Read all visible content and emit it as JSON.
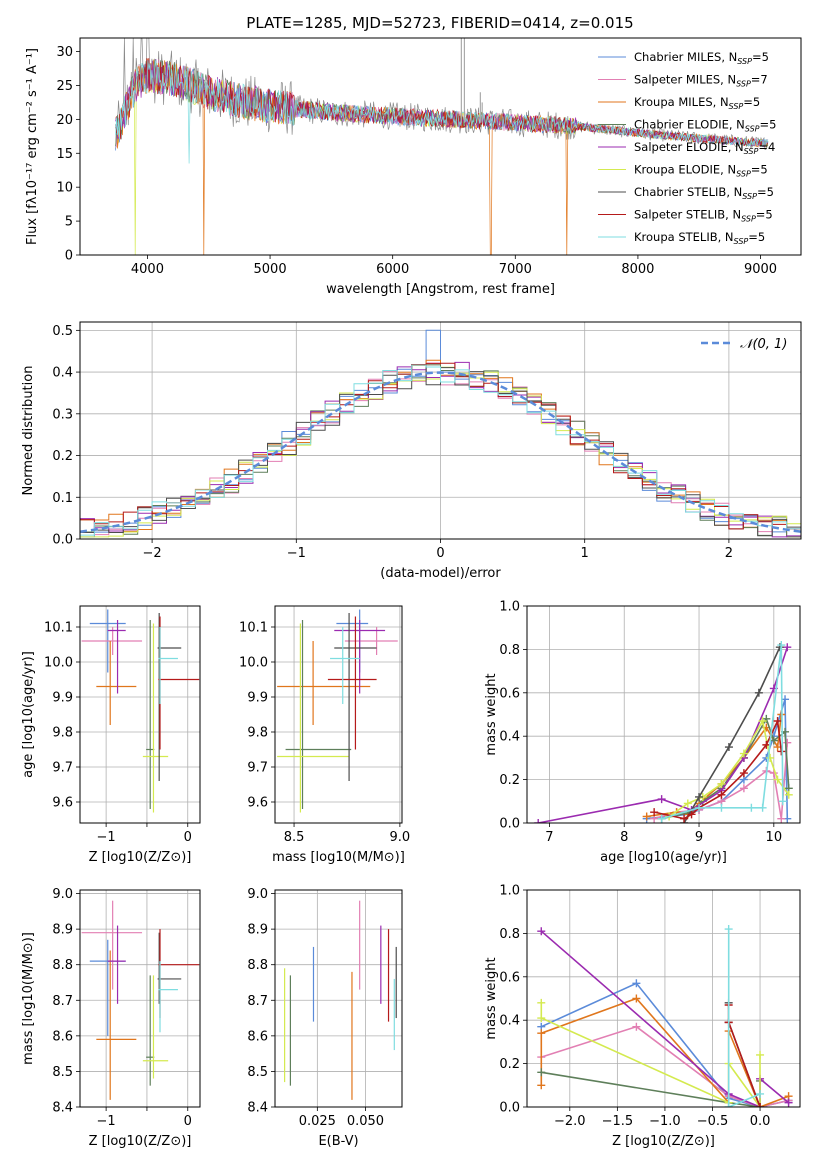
{
  "figure_title": "PLATE=1285, MJD=52723, FIBERID=0414, z=0.015",
  "colors": {
    "Chabrier MILES": "#5b8bd9",
    "Salpeter MILES": "#e27fb3",
    "Kroupa MILES": "#e0761c",
    "Chabrier ELODIE": "#5e7f5a",
    "Salpeter ELODIE": "#9b2bb0",
    "Kroupa ELODIE": "#d4ea4f",
    "Chabrier STELIB": "#4d4d4d",
    "Salpeter STELIB": "#b51a1a",
    "Kroupa STELIB": "#7fdde0"
  },
  "chart_data": [
    {
      "id": "spectrum",
      "type": "line",
      "xlabel": "wavelength [Angstrom, rest frame]",
      "ylabel": "Flux [fλ10⁻¹⁷ erg cm⁻² s⁻¹ A⁻¹]",
      "xlim": [
        3450,
        9330
      ],
      "ylim": [
        0,
        32
      ],
      "xticks": [
        4000,
        5000,
        6000,
        7000,
        8000,
        9000
      ],
      "yticks": [
        0,
        5,
        10,
        15,
        20,
        25,
        30
      ],
      "legend_position": "top-right",
      "series": [
        {
          "name": "Chabrier MILES, N_SSP=5"
        },
        {
          "name": "Salpeter MILES, N_SSP=7"
        },
        {
          "name": "Kroupa MILES, N_SSP=5"
        },
        {
          "name": "Chabrier ELODIE, N_SSP=5"
        },
        {
          "name": "Salpeter ELODIE, N_SSP=4"
        },
        {
          "name": "Kroupa ELODIE, N_SSP=5"
        },
        {
          "name": "Chabrier STELIB, N_SSP=5"
        },
        {
          "name": "Salpeter STELIB, N_SSP=5"
        },
        {
          "name": "Kroupa STELIB, N_SSP=5"
        }
      ],
      "data_profile": {
        "x": [
          3750,
          3900,
          4000,
          4200,
          4500,
          4800,
          5000,
          5500,
          6000,
          6500,
          7000,
          7500,
          8000,
          8500,
          9000
        ],
        "y": [
          18,
          25,
          26.5,
          26,
          24,
          22.5,
          22,
          21,
          20.5,
          20,
          19.5,
          19,
          18,
          17.2,
          16.5
        ]
      }
    },
    {
      "id": "residuals",
      "type": "histogram",
      "xlabel": "(data-model)/error",
      "ylabel": "Normed distribution",
      "xlim": [
        -2.5,
        2.5
      ],
      "ylim": [
        0,
        0.52
      ],
      "xticks": [
        -2,
        -1,
        0,
        1,
        2
      ],
      "yticks": [
        0.0,
        0.1,
        0.2,
        0.3,
        0.4,
        0.5
      ],
      "grid": true,
      "legend": "𝒩(0, 1)",
      "legend_position": "top-right",
      "reference_curve": "gaussian mean 0 sigma 1"
    },
    {
      "id": "age-vs-Z",
      "type": "errorbar",
      "xlabel": "Z [log10(Z/Z⊙)]",
      "ylabel": "age  [log10(age/yr)]",
      "xlim": [
        -1.32,
        0.15
      ],
      "ylim": [
        9.54,
        10.16
      ],
      "xticks": [
        -1,
        -0.5,
        0
      ],
      "xticklabels": [
        "−1",
        "",
        "0"
      ],
      "yticks": [
        9.6,
        9.7,
        9.8,
        9.9,
        10.0,
        10.1
      ],
      "grid": true,
      "points": [
        {
          "series": "Chabrier MILES",
          "x": -0.98,
          "y": 10.11,
          "xerr": [
            0.22,
            0.22
          ],
          "yerr": [
            0.14,
            0.04
          ]
        },
        {
          "series": "Salpeter MILES",
          "x": -0.92,
          "y": 10.06,
          "xerr": [
            0.38,
            0.36
          ],
          "yerr": [
            0.04,
            0.04
          ]
        },
        {
          "series": "Kroupa MILES",
          "x": -0.95,
          "y": 9.93,
          "xerr": [
            0.17,
            0.32
          ],
          "yerr": [
            0.11,
            0.13
          ]
        },
        {
          "series": "Chabrier ELODIE",
          "x": -0.46,
          "y": 9.75,
          "xerr": [
            0.05,
            0.05
          ],
          "yerr": [
            0.17,
            0.37
          ]
        },
        {
          "series": "Salpeter ELODIE",
          "x": -0.86,
          "y": 10.09,
          "xerr": [
            0.12,
            0.1
          ],
          "yerr": [
            0.18,
            0.03
          ]
        },
        {
          "series": "Kroupa ELODIE",
          "x": -0.42,
          "y": 9.73,
          "xerr": [
            0.13,
            0.18
          ],
          "yerr": [
            0.16,
            0.38
          ]
        },
        {
          "series": "Chabrier STELIB",
          "x": -0.35,
          "y": 10.04,
          "xerr": [
            0.02,
            0.27
          ],
          "yerr": [
            0.38,
            0.1
          ]
        },
        {
          "series": "Salpeter STELIB",
          "x": -0.34,
          "y": 9.95,
          "xerr": [
            0.02,
            0.48
          ],
          "yerr": [
            0.2,
            0.18
          ]
        },
        {
          "series": "Kroupa STELIB",
          "x": -0.34,
          "y": 10.01,
          "xerr": [
            0.02,
            0.22
          ],
          "yerr": [
            0.13,
            0.09
          ]
        }
      ]
    },
    {
      "id": "age-vs-mass",
      "type": "errorbar",
      "xlabel": "mass [log10(M/M⊙)]",
      "ylabel": "",
      "xlim": [
        8.41,
        9.01
      ],
      "ylim": [
        9.54,
        10.16
      ],
      "xticks": [
        8.5,
        9.0
      ],
      "xticklabels": [
        "8.5",
        "9.0"
      ],
      "yticks": [
        9.6,
        9.7,
        9.8,
        9.9,
        10.0,
        10.1
      ],
      "grid": true,
      "points": [
        {
          "series": "Chabrier MILES",
          "x": 8.81,
          "y": 10.11,
          "xerr": [
            0.11,
            0.04
          ],
          "yerr": [
            0.14,
            0.04
          ]
        },
        {
          "series": "Salpeter MILES",
          "x": 8.89,
          "y": 10.06,
          "xerr": [
            0.15,
            0.1
          ],
          "yerr": [
            0.04,
            0.04
          ]
        },
        {
          "series": "Kroupa MILES",
          "x": 8.59,
          "y": 9.93,
          "xerr": [
            0.17,
            0.27
          ],
          "yerr": [
            0.11,
            0.13
          ]
        },
        {
          "series": "Chabrier ELODIE",
          "x": 8.54,
          "y": 9.75,
          "xerr": [
            0.08,
            0.23
          ],
          "yerr": [
            0.17,
            0.37
          ]
        },
        {
          "series": "Salpeter ELODIE",
          "x": 8.81,
          "y": 10.09,
          "xerr": [
            0.12,
            0.12
          ],
          "yerr": [
            0.18,
            0.03
          ]
        },
        {
          "series": "Kroupa ELODIE",
          "x": 8.53,
          "y": 9.73,
          "xerr": [
            0.11,
            0.23
          ],
          "yerr": [
            0.16,
            0.38
          ]
        },
        {
          "series": "Chabrier STELIB",
          "x": 8.76,
          "y": 10.04,
          "xerr": [
            0.07,
            0.13
          ],
          "yerr": [
            0.38,
            0.1
          ]
        },
        {
          "series": "Salpeter STELIB",
          "x": 8.79,
          "y": 9.95,
          "xerr": [
            0.13,
            0.1
          ],
          "yerr": [
            0.2,
            0.18
          ]
        },
        {
          "series": "Kroupa STELIB",
          "x": 8.73,
          "y": 10.01,
          "xerr": [
            0.06,
            0.08
          ],
          "yerr": [
            0.13,
            0.09
          ]
        }
      ]
    },
    {
      "id": "weight-vs-age",
      "type": "line",
      "xlabel": "age  [log10(age/yr)]",
      "ylabel": "mass weight",
      "xlim": [
        6.7,
        10.35
      ],
      "ylim": [
        0,
        1.0
      ],
      "xticks": [
        7,
        8,
        9,
        10
      ],
      "yticks": [
        0.0,
        0.2,
        0.4,
        0.6,
        0.8,
        1.0
      ],
      "grid": true,
      "series": [
        {
          "series": "Chabrier MILES",
          "x": [
            8.3,
            8.85,
            9.0,
            9.3,
            9.6,
            9.9,
            10.0,
            10.15,
            10.18
          ],
          "y": [
            0.02,
            0.04,
            0.06,
            0.1,
            0.2,
            0.3,
            0.4,
            0.57,
            0.02
          ]
        },
        {
          "series": "Salpeter MILES",
          "x": [
            8.4,
            8.7,
            9.0,
            9.3,
            9.6,
            9.9,
            10.0,
            10.1,
            10.18
          ],
          "y": [
            0.02,
            0.05,
            0.06,
            0.1,
            0.16,
            0.24,
            0.23,
            0.02,
            0.37
          ]
        },
        {
          "series": "Kroupa MILES",
          "x": [
            8.3,
            8.7,
            8.85,
            9.0,
            9.3,
            9.6,
            9.9,
            10.05,
            10.1
          ],
          "y": [
            0.03,
            0.05,
            0.04,
            0.09,
            0.18,
            0.3,
            0.44,
            0.35,
            0.5
          ]
        },
        {
          "series": "Chabrier ELODIE",
          "x": [
            8.5,
            8.9,
            9.05,
            9.3,
            9.6,
            9.9,
            10.0,
            10.15,
            10.2
          ],
          "y": [
            0.02,
            0.05,
            0.1,
            0.16,
            0.3,
            0.48,
            0.38,
            0.42,
            0.16
          ]
        },
        {
          "series": "Salpeter ELODIE",
          "x": [
            6.85,
            8.5,
            8.9,
            9.3,
            9.6,
            10.0,
            10.18
          ],
          "y": [
            0.0,
            0.11,
            0.06,
            0.15,
            0.3,
            0.62,
            0.81
          ]
        },
        {
          "series": "Kroupa ELODIE",
          "x": [
            8.6,
            8.85,
            9.05,
            9.3,
            9.6,
            9.85,
            9.95,
            10.05,
            10.2
          ],
          "y": [
            0.03,
            0.09,
            0.12,
            0.18,
            0.32,
            0.47,
            0.3,
            0.2,
            0.13
          ]
        },
        {
          "series": "Chabrier STELIB",
          "x": [
            8.8,
            9.0,
            9.4,
            9.8,
            10.08
          ],
          "y": [
            0.0,
            0.12,
            0.35,
            0.6,
            0.81
          ]
        },
        {
          "series": "Salpeter STELIB",
          "x": [
            8.4,
            8.8,
            8.9,
            9.0,
            9.3,
            9.6,
            9.9,
            10.05,
            10.1
          ],
          "y": [
            0.05,
            0.02,
            0.04,
            0.07,
            0.13,
            0.23,
            0.36,
            0.47,
            0.33
          ]
        },
        {
          "series": "Kroupa STELIB",
          "x": [
            8.5,
            9.0,
            9.3,
            9.7,
            9.85,
            10.1,
            10.12
          ],
          "y": [
            0.02,
            0.07,
            0.07,
            0.07,
            0.07,
            0.82,
            0.1
          ]
        }
      ]
    },
    {
      "id": "mass-vs-Z",
      "type": "errorbar",
      "xlabel": "Z [log10(Z/Z⊙)]",
      "ylabel": "mass [log10(M/M⊙)]",
      "xlim": [
        -1.32,
        0.15
      ],
      "ylim": [
        8.4,
        9.01
      ],
      "xticks": [
        -1,
        -0.5,
        0
      ],
      "xticklabels": [
        "−1",
        "",
        "0"
      ],
      "yticks": [
        8.4,
        8.5,
        8.6,
        8.7,
        8.8,
        8.9,
        9.0
      ],
      "grid": true,
      "points": [
        {
          "series": "Chabrier MILES",
          "x": -0.98,
          "y": 8.81,
          "xerr": [
            0.22,
            0.22
          ],
          "yerr": [
            0.21,
            0.06
          ]
        },
        {
          "series": "Salpeter MILES",
          "x": -0.92,
          "y": 8.89,
          "xerr": [
            0.38,
            0.36
          ],
          "yerr": [
            0.16,
            0.09
          ]
        },
        {
          "series": "Kroupa MILES",
          "x": -0.95,
          "y": 8.59,
          "xerr": [
            0.17,
            0.32
          ],
          "yerr": [
            0.17,
            0.25
          ]
        },
        {
          "series": "Chabrier ELODIE",
          "x": -0.46,
          "y": 8.54,
          "xerr": [
            0.05,
            0.05
          ],
          "yerr": [
            0.08,
            0.23
          ]
        },
        {
          "series": "Salpeter ELODIE",
          "x": -0.86,
          "y": 8.81,
          "xerr": [
            0.12,
            0.1
          ],
          "yerr": [
            0.12,
            0.1
          ]
        },
        {
          "series": "Kroupa ELODIE",
          "x": -0.42,
          "y": 8.53,
          "xerr": [
            0.13,
            0.18
          ],
          "yerr": [
            0.05,
            0.24
          ]
        },
        {
          "series": "Chabrier STELIB",
          "x": -0.35,
          "y": 8.76,
          "xerr": [
            0.02,
            0.27
          ],
          "yerr": [
            0.07,
            0.13
          ]
        },
        {
          "series": "Salpeter STELIB",
          "x": -0.34,
          "y": 8.8,
          "xerr": [
            0.02,
            0.48
          ],
          "yerr": [
            0.15,
            0.1
          ]
        },
        {
          "series": "Kroupa STELIB",
          "x": -0.34,
          "y": 8.73,
          "xerr": [
            0.02,
            0.22
          ],
          "yerr": [
            0.12,
            0.08
          ]
        }
      ]
    },
    {
      "id": "mass-vs-ebv",
      "type": "errorbar",
      "xlabel": "E(B-V)",
      "ylabel": "",
      "xlim": [
        0.003,
        0.069
      ],
      "ylim": [
        8.4,
        9.01
      ],
      "xticks": [
        0.025,
        0.05
      ],
      "xticklabels": [
        "0.025",
        "0.050"
      ],
      "yticks": [
        8.4,
        8.5,
        8.6,
        8.7,
        8.8,
        8.9,
        9.0
      ],
      "grid": true,
      "points": [
        {
          "series": "Chabrier MILES",
          "x": 0.023,
          "y": 8.78,
          "yerr": [
            0.14,
            0.07
          ]
        },
        {
          "series": "Salpeter MILES",
          "x": 0.047,
          "y": 8.85,
          "yerr": [
            0.12,
            0.13
          ]
        },
        {
          "series": "Kroupa MILES",
          "x": 0.043,
          "y": 8.6,
          "yerr": [
            0.18,
            0.18
          ]
        },
        {
          "series": "Chabrier ELODIE",
          "x": 0.011,
          "y": 8.62,
          "yerr": [
            0.16,
            0.15
          ]
        },
        {
          "series": "Salpeter ELODIE",
          "x": 0.058,
          "y": 8.81,
          "yerr": [
            0.12,
            0.1
          ]
        },
        {
          "series": "Kroupa ELODIE",
          "x": 0.008,
          "y": 8.63,
          "yerr": [
            0.16,
            0.16
          ]
        },
        {
          "series": "Chabrier STELIB",
          "x": 0.066,
          "y": 8.75,
          "yerr": [
            0.1,
            0.1
          ]
        },
        {
          "series": "Salpeter STELIB",
          "x": 0.062,
          "y": 8.77,
          "yerr": [
            0.13,
            0.13
          ]
        },
        {
          "series": "Kroupa STELIB",
          "x": 0.065,
          "y": 8.66,
          "yerr": [
            0.1,
            0.1
          ]
        }
      ]
    },
    {
      "id": "weight-vs-Z",
      "type": "line",
      "xlabel": "Z [log10(Z/Z⊙)]",
      "ylabel": "mass weight",
      "xlim": [
        -2.45,
        0.42
      ],
      "ylim": [
        0,
        1.0
      ],
      "xticks": [
        -2.0,
        -1.5,
        -1.0,
        -0.5,
        0.0
      ],
      "xticklabels": [
        "−2.0",
        "−1.5",
        "−1.0",
        "−0.5",
        "0.0"
      ],
      "yticks": [
        0.0,
        0.2,
        0.4,
        0.6,
        0.8,
        1.0
      ],
      "grid": true,
      "series": [
        {
          "series": "Chabrier MILES",
          "x": [
            -2.3,
            -1.3,
            -0.33,
            0.0,
            0.3
          ],
          "y": [
            0.37,
            0.57,
            0.04,
            0.0,
            0.03
          ]
        },
        {
          "series": "Salpeter MILES",
          "x": [
            -2.3,
            -1.3,
            -0.33,
            0.0,
            0.3
          ],
          "y": [
            0.23,
            0.37,
            0.05,
            0.0,
            0.03
          ]
        },
        {
          "series": "Kroupa MILES",
          "x": [
            -2.3,
            -2.3,
            -1.3,
            -0.33,
            -0.33,
            0.0,
            0.3
          ],
          "y": [
            0.1,
            0.34,
            0.5,
            0.02,
            0.35,
            0.0,
            0.05
          ]
        },
        {
          "series": "Chabrier ELODIE",
          "x": [
            -2.3,
            -0.33,
            0.0,
            0.0
          ],
          "y": [
            0.16,
            0.02,
            0.0,
            0.12
          ]
        },
        {
          "series": "Salpeter ELODIE",
          "x": [
            -2.3,
            -0.33,
            0.0,
            0.0,
            0.3
          ],
          "y": [
            0.81,
            0.06,
            0.0,
            0.13,
            0.02
          ]
        },
        {
          "series": "Kroupa ELODIE",
          "x": [
            -2.3,
            -2.3,
            -0.33,
            -0.33,
            0.0,
            0.0
          ],
          "y": [
            0.48,
            0.41,
            0.02,
            0.2,
            0.0,
            0.24
          ]
        },
        {
          "series": "Chabrier STELIB",
          "x": [
            -0.33,
            -0.33,
            0.0
          ],
          "y": [
            0.48,
            0.39,
            0.0
          ]
        },
        {
          "series": "Salpeter STELIB",
          "x": [
            -0.33,
            -0.33,
            0.0
          ],
          "y": [
            0.47,
            0.39,
            0.0
          ]
        },
        {
          "series": "Kroupa STELIB",
          "x": [
            -0.33,
            -0.33,
            0.0
          ],
          "y": [
            0.82,
            0.0,
            0.06
          ]
        }
      ]
    }
  ]
}
